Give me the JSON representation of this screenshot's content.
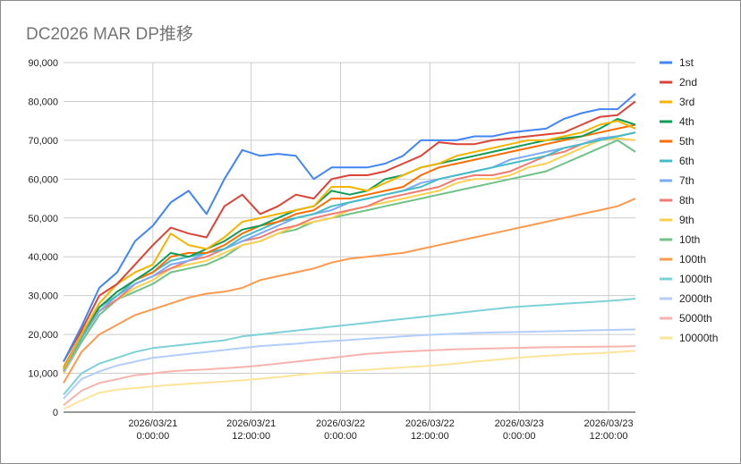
{
  "chart_data": {
    "type": "line",
    "title": "DC2026 MAR DP推移",
    "xlabel": "",
    "ylabel": "",
    "ylim": [
      0,
      90000
    ],
    "xlim": [
      0,
      64
    ],
    "x_unit": "hours since start",
    "y_ticks": [
      "0",
      "10,000",
      "20,000",
      "30,000",
      "40,000",
      "50,000",
      "60,000",
      "70,000",
      "80,000",
      "90,000"
    ],
    "x_ticks": [
      {
        "x": 10,
        "line1": "2026/03/21",
        "line2": "0:00:00"
      },
      {
        "x": 21,
        "line1": "2026/03/21",
        "line2": "12:00:00"
      },
      {
        "x": 31,
        "line1": "2026/03/22",
        "line2": "0:00:00"
      },
      {
        "x": 41,
        "line1": "2026/03/22",
        "line2": "12:00:00"
      },
      {
        "x": 51,
        "line1": "2026/03/23",
        "line2": "0:00:00"
      },
      {
        "x": 61,
        "line1": "2026/03/23",
        "line2": "12:00:00"
      }
    ],
    "grid": true,
    "legend_position": "right",
    "x": [
      0,
      2,
      4,
      6,
      8,
      10,
      12,
      14,
      16,
      18,
      20,
      22,
      24,
      26,
      28,
      30,
      32,
      34,
      36,
      38,
      40,
      42,
      44,
      46,
      48,
      50,
      52,
      54,
      56,
      58,
      60,
      62,
      64
    ],
    "series": [
      {
        "name": "1st",
        "color": "#4285F4",
        "values": [
          13000,
          22000,
          32000,
          36000,
          44000,
          48000,
          54000,
          57000,
          51000,
          60000,
          67500,
          66000,
          66500,
          66000,
          60000,
          63000,
          63000,
          63000,
          64000,
          66000,
          70000,
          70000,
          70000,
          71000,
          71000,
          72000,
          72500,
          73000,
          75500,
          77000,
          78000,
          78000,
          82000
        ]
      },
      {
        "name": "2nd",
        "color": "#DB4437",
        "values": [
          13000,
          21000,
          30000,
          33000,
          38000,
          43000,
          47500,
          46000,
          45000,
          53000,
          56000,
          51000,
          53000,
          56000,
          55000,
          60000,
          61000,
          61000,
          62000,
          64000,
          66000,
          69500,
          69000,
          69000,
          70000,
          70500,
          71000,
          71500,
          72000,
          74000,
          76000,
          76500,
          80000
        ]
      },
      {
        "name": "3rd",
        "color": "#F4B400",
        "values": [
          11000,
          20000,
          28000,
          33000,
          36000,
          38000,
          46000,
          43000,
          42000,
          45000,
          49000,
          50000,
          51000,
          52000,
          53000,
          58000,
          58000,
          57000,
          59000,
          61000,
          63000,
          64000,
          66000,
          67000,
          68000,
          69000,
          70000,
          70000,
          71000,
          72000,
          74000,
          75000,
          73000
        ]
      },
      {
        "name": "4th",
        "color": "#0F9D58",
        "values": [
          11000,
          20000,
          27000,
          31000,
          34000,
          37000,
          41000,
          40000,
          42000,
          44000,
          47000,
          48000,
          50000,
          52000,
          53000,
          57000,
          56000,
          57000,
          60000,
          61000,
          63000,
          64000,
          65000,
          66000,
          67000,
          68000,
          69000,
          70000,
          70500,
          71000,
          73000,
          75500,
          74000
        ]
      },
      {
        "name": "5th",
        "color": "#FF6D00",
        "values": [
          11500,
          20000,
          27000,
          31000,
          34000,
          36000,
          40000,
          41000,
          41000,
          43000,
          46000,
          48000,
          49000,
          51000,
          52000,
          55000,
          55000,
          56000,
          57000,
          58000,
          61000,
          63000,
          64000,
          65000,
          66000,
          67000,
          68000,
          69000,
          70000,
          71000,
          72000,
          73000,
          74000
        ]
      },
      {
        "name": "6th",
        "color": "#46BDC6",
        "values": [
          11000,
          19000,
          27000,
          30000,
          34000,
          36000,
          39000,
          40000,
          41000,
          42000,
          45000,
          47000,
          49000,
          50000,
          51000,
          53000,
          54000,
          55000,
          56000,
          57000,
          58000,
          60000,
          61000,
          62000,
          63000,
          64000,
          65000,
          66000,
          68000,
          69000,
          70000,
          71000,
          72000
        ]
      },
      {
        "name": "7th",
        "color": "#7BAAF7",
        "values": [
          10500,
          19000,
          26000,
          30000,
          33000,
          35000,
          38000,
          39000,
          41000,
          42000,
          44000,
          46000,
          48000,
          50000,
          51000,
          52000,
          54000,
          55000,
          56000,
          57000,
          59000,
          60000,
          61000,
          62000,
          63000,
          65000,
          66000,
          67000,
          68000,
          69000,
          70500,
          71000,
          72000
        ]
      },
      {
        "name": "8th",
        "color": "#F07B72",
        "values": [
          10500,
          19000,
          26000,
          29000,
          33000,
          35000,
          37000,
          39000,
          40000,
          42000,
          44000,
          45000,
          47000,
          48000,
          50000,
          51000,
          52000,
          53000,
          55000,
          56000,
          57000,
          58000,
          60000,
          61000,
          61000,
          62000,
          64000,
          66000,
          67000,
          69000,
          70500,
          71000,
          72000
        ]
      },
      {
        "name": "9th",
        "color": "#FCD04F",
        "values": [
          10000,
          19000,
          26000,
          29000,
          32000,
          34000,
          37000,
          38000,
          39000,
          41000,
          43000,
          44000,
          46000,
          48000,
          49000,
          50000,
          52000,
          53000,
          54000,
          55000,
          56000,
          57000,
          59000,
          60000,
          60000,
          61000,
          63000,
          64000,
          66000,
          68000,
          70000,
          70500,
          70000
        ]
      },
      {
        "name": "10th",
        "color": "#71C287",
        "values": [
          10000,
          18000,
          25000,
          29000,
          31000,
          33000,
          36000,
          37000,
          38000,
          40000,
          43000,
          44000,
          46000,
          47000,
          49000,
          50000,
          51000,
          52000,
          53000,
          54000,
          55000,
          56000,
          57000,
          58000,
          59000,
          60000,
          61000,
          62000,
          64000,
          66000,
          68000,
          70000,
          67000
        ]
      },
      {
        "name": "100th",
        "color": "#FF994D",
        "values": [
          7500,
          15500,
          20000,
          22500,
          25000,
          26500,
          28000,
          29500,
          30500,
          31000,
          32000,
          34000,
          35000,
          36000,
          37000,
          38500,
          39500,
          40000,
          40500,
          41000,
          42000,
          43000,
          44000,
          45000,
          46000,
          47000,
          48000,
          49000,
          50000,
          51000,
          52000,
          53000,
          55000
        ]
      },
      {
        "name": "1000th",
        "color": "#7ED1D7",
        "values": [
          4500,
          10000,
          12500,
          14000,
          15500,
          16500,
          17000,
          17500,
          18000,
          18500,
          19500,
          20000,
          20500,
          21000,
          21500,
          22000,
          22500,
          23000,
          23500,
          24000,
          24500,
          25000,
          25500,
          26000,
          26500,
          27000,
          27300,
          27600,
          27900,
          28200,
          28500,
          28800,
          29200
        ]
      },
      {
        "name": "2000th",
        "color": "#B3CEFB",
        "values": [
          3500,
          8500,
          10500,
          12000,
          13000,
          14000,
          14500,
          15000,
          15500,
          16000,
          16500,
          17000,
          17300,
          17600,
          18000,
          18300,
          18600,
          18900,
          19200,
          19500,
          19800,
          20000,
          20200,
          20400,
          20500,
          20600,
          20700,
          20800,
          20900,
          21000,
          21100,
          21200,
          21300
        ]
      },
      {
        "name": "5000th",
        "color": "#F7B4AE",
        "values": [
          1800,
          5500,
          7500,
          8500,
          9500,
          10000,
          10500,
          10800,
          11000,
          11300,
          11600,
          12000,
          12500,
          13000,
          13500,
          14000,
          14500,
          15000,
          15300,
          15600,
          15800,
          16000,
          16200,
          16300,
          16400,
          16500,
          16600,
          16700,
          16750,
          16800,
          16850,
          16900,
          17000
        ]
      },
      {
        "name": "10000th",
        "color": "#FDE49B",
        "values": [
          800,
          3000,
          5000,
          5800,
          6200,
          6600,
          7000,
          7300,
          7600,
          7900,
          8200,
          8600,
          9000,
          9500,
          10000,
          10300,
          10600,
          10900,
          11200,
          11500,
          11800,
          12100,
          12500,
          13000,
          13400,
          13800,
          14200,
          14500,
          14800,
          15000,
          15200,
          15500,
          15800
        ]
      }
    ]
  }
}
